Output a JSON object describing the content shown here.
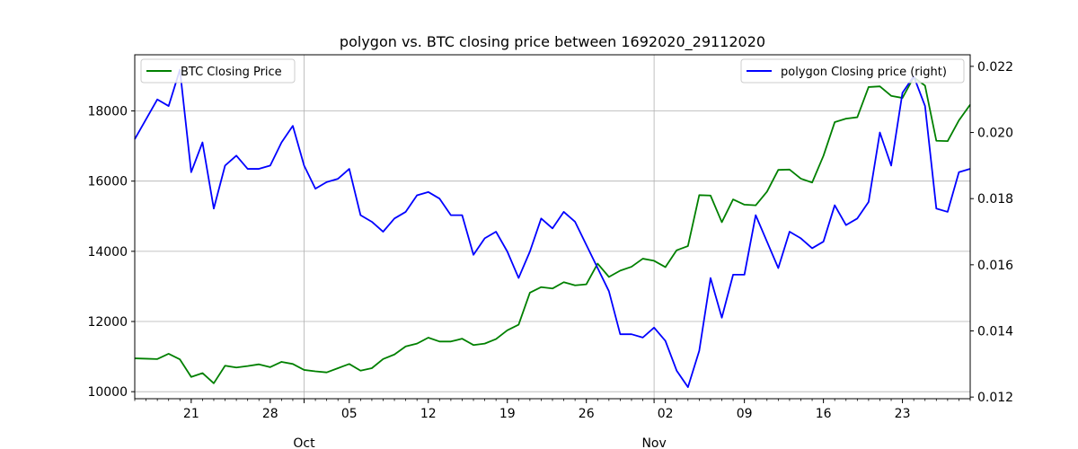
{
  "chart_data": {
    "type": "line",
    "title": "polygon vs. BTC closing price between 1692020_29112020",
    "x": [
      "2020-09-16",
      "2020-09-17",
      "2020-09-18",
      "2020-09-19",
      "2020-09-20",
      "2020-09-21",
      "2020-09-22",
      "2020-09-23",
      "2020-09-24",
      "2020-09-25",
      "2020-09-26",
      "2020-09-27",
      "2020-09-28",
      "2020-09-29",
      "2020-09-30",
      "2020-10-01",
      "2020-10-02",
      "2020-10-03",
      "2020-10-04",
      "2020-10-05",
      "2020-10-06",
      "2020-10-07",
      "2020-10-08",
      "2020-10-09",
      "2020-10-10",
      "2020-10-11",
      "2020-10-12",
      "2020-10-13",
      "2020-10-14",
      "2020-10-15",
      "2020-10-16",
      "2020-10-17",
      "2020-10-18",
      "2020-10-19",
      "2020-10-20",
      "2020-10-21",
      "2020-10-22",
      "2020-10-23",
      "2020-10-24",
      "2020-10-25",
      "2020-10-26",
      "2020-10-27",
      "2020-10-28",
      "2020-10-29",
      "2020-10-30",
      "2020-10-31",
      "2020-11-01",
      "2020-11-02",
      "2020-11-03",
      "2020-11-04",
      "2020-11-05",
      "2020-11-06",
      "2020-11-07",
      "2020-11-08",
      "2020-11-09",
      "2020-11-10",
      "2020-11-11",
      "2020-11-12",
      "2020-11-13",
      "2020-11-14",
      "2020-11-15",
      "2020-11-16",
      "2020-11-17",
      "2020-11-18",
      "2020-11-19",
      "2020-11-20",
      "2020-11-21",
      "2020-11-22",
      "2020-11-23",
      "2020-11-24",
      "2020-11-25",
      "2020-11-26",
      "2020-11-27",
      "2020-11-28",
      "2020-11-29"
    ],
    "series": [
      {
        "name": "BTC Closing Price",
        "axis": "left",
        "color": "#008000",
        "values": [
          10950,
          10940,
          10930,
          11080,
          10920,
          10420,
          10530,
          10240,
          10740,
          10690,
          10730,
          10780,
          10700,
          10850,
          10790,
          10620,
          10580,
          10550,
          10670,
          10790,
          10600,
          10670,
          10930,
          11060,
          11290,
          11370,
          11540,
          11430,
          11430,
          11510,
          11330,
          11370,
          11500,
          11750,
          11910,
          12820,
          12980,
          12940,
          13120,
          13030,
          13060,
          13650,
          13270,
          13450,
          13560,
          13790,
          13730,
          13550,
          14030,
          14150,
          15600,
          15590,
          14830,
          15480,
          15330,
          15310,
          15700,
          16320,
          16330,
          16070,
          15960,
          16720,
          17680,
          17780,
          17820,
          18680,
          18700,
          18430,
          18370,
          18960,
          18720,
          17150,
          17140,
          17730,
          18180
        ]
      },
      {
        "name": "polygon Closing price (right)",
        "axis": "right",
        "color": "#0000ff",
        "values": [
          0.0198,
          0.0204,
          0.021,
          0.0208,
          0.0219,
          0.0188,
          0.0197,
          0.0177,
          0.019,
          0.0193,
          0.0189,
          0.0189,
          0.019,
          0.0197,
          0.0202,
          0.019,
          0.0183,
          0.0185,
          0.0186,
          0.0189,
          0.0175,
          0.0173,
          0.017,
          0.0174,
          0.0176,
          0.0181,
          0.0182,
          0.018,
          0.0175,
          0.0175,
          0.0163,
          0.0168,
          0.017,
          0.0164,
          0.0156,
          0.0164,
          0.0174,
          0.0171,
          0.0176,
          0.0173,
          0.0166,
          0.0159,
          0.0152,
          0.0139,
          0.0139,
          0.0138,
          0.0141,
          0.0137,
          0.0128,
          0.0123,
          0.0134,
          0.0156,
          0.0144,
          0.0157,
          0.0157,
          0.0175,
          0.0167,
          0.0159,
          0.017,
          0.0168,
          0.0165,
          0.0167,
          0.0178,
          0.0172,
          0.0174,
          0.0179,
          0.02,
          0.019,
          0.0212,
          0.0217,
          0.0208,
          0.0177,
          0.0176,
          0.0188,
          0.0189
        ]
      }
    ],
    "x_ticks": [
      "21",
      "28",
      "05",
      "12",
      "19",
      "26",
      "02",
      "09",
      "16",
      "23"
    ],
    "x_tick_dates": [
      "2020-09-21",
      "2020-09-28",
      "2020-10-05",
      "2020-10-12",
      "2020-10-19",
      "2020-10-26",
      "2020-11-02",
      "2020-11-09",
      "2020-11-16",
      "2020-11-23"
    ],
    "month_labels": [
      "Oct",
      "Nov"
    ],
    "month_dates": [
      "2020-10-01",
      "2020-11-01"
    ],
    "y_left": {
      "ticks": [
        "10000",
        "12000",
        "14000",
        "16000",
        "18000"
      ],
      "tick_values": [
        10000,
        12000,
        14000,
        16000,
        18000
      ],
      "lim": [
        9800,
        19600
      ]
    },
    "y_right": {
      "ticks": [
        "0.012",
        "0.014",
        "0.016",
        "0.018",
        "0.020",
        "0.022"
      ],
      "tick_values": [
        0.012,
        0.014,
        0.016,
        0.018,
        0.02,
        0.022
      ],
      "lim": [
        0.01195,
        0.02235
      ]
    },
    "grid": true,
    "legend_left": {
      "label": "BTC Closing Price",
      "placement": "top-left"
    },
    "legend_right": {
      "label": "polygon Closing price (right)",
      "placement": "top-right"
    }
  }
}
